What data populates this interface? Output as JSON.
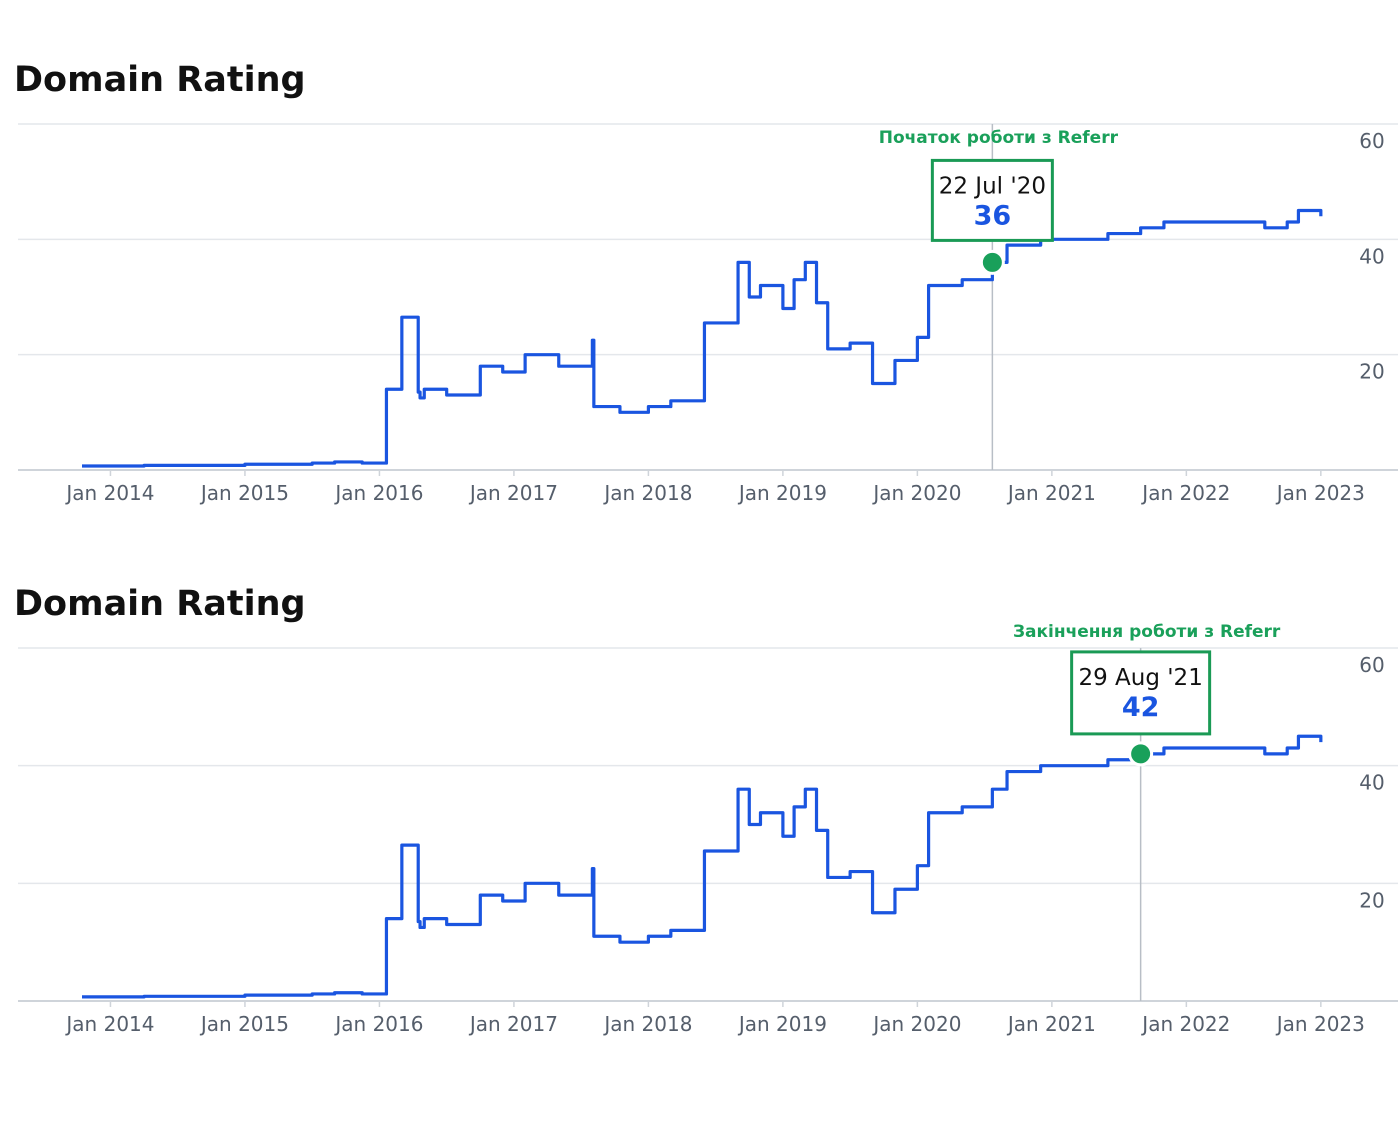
{
  "colors": {
    "series": "#1a55e0",
    "grid": "#e4e7eb",
    "marker": "#19a05a",
    "callout_border": "#1a9a55",
    "annotation": "#1aa05a"
  },
  "chart_data": [
    {
      "type": "line",
      "title": "Domain Rating",
      "xlabel": "",
      "ylabel": "",
      "x_ticks": [
        "Jan 2014",
        "Jan 2015",
        "Jan 2016",
        "Jan 2017",
        "Jan 2018",
        "Jan 2019",
        "Jan 2020",
        "Jan 2021",
        "Jan 2022",
        "Jan 2023"
      ],
      "y_ticks": [
        20,
        40,
        60
      ],
      "ylim": [
        0,
        60
      ],
      "xlim": [
        "2013-10-15",
        "2023-01-15"
      ],
      "grid": true,
      "y_axis_side": "right",
      "series": [
        {
          "x": [
            "2013-10-15",
            "2014-04-01",
            "2015-01-01",
            "2015-07-01",
            "2015-09-01",
            "2015-11-15",
            "2016-01-15",
            "2016-01-20",
            "2016-03-01",
            "2016-04-15",
            "2016-04-20",
            "2016-05-01",
            "2016-07-01",
            "2016-10-01",
            "2016-12-01",
            "2017-02-01",
            "2017-05-01",
            "2017-08-01",
            "2017-08-05",
            "2017-10-15",
            "2018-01-01",
            "2018-03-01",
            "2018-06-01",
            "2018-09-01",
            "2018-10-01",
            "2018-11-01",
            "2019-01-01",
            "2019-02-01",
            "2019-03-01",
            "2019-04-01",
            "2019-05-01",
            "2019-07-01",
            "2019-09-01",
            "2019-11-01",
            "2020-01-01",
            "2020-02-01",
            "2020-03-01",
            "2020-05-01",
            "2020-07-22",
            "2020-09-01",
            "2020-12-01",
            "2021-03-01",
            "2021-06-01",
            "2021-08-29",
            "2021-11-01",
            "2022-02-01",
            "2022-05-01",
            "2022-08-01",
            "2022-10-01",
            "2022-11-01",
            "2023-01-01"
          ],
          "y": [
            0.7,
            0.8,
            1,
            1.2,
            1.4,
            1.2,
            1.2,
            14,
            26.5,
            13.5,
            12.5,
            14,
            13,
            18,
            17,
            20,
            18,
            22.5,
            11,
            10,
            11,
            12,
            25.5,
            36,
            30,
            32,
            28,
            33,
            36,
            29,
            21,
            22,
            15,
            19,
            23,
            32,
            32,
            33,
            36,
            39,
            40,
            40,
            41,
            42,
            43,
            43,
            43,
            42,
            43,
            45,
            44
          ]
        }
      ],
      "callout": {
        "date_label": "22 Jul '20",
        "value_label": "36",
        "x": "2020-07-22",
        "y": 36
      },
      "annotation": "Початок роботи з Referr"
    },
    {
      "type": "line",
      "title": "Domain Rating",
      "xlabel": "",
      "ylabel": "",
      "x_ticks": [
        "Jan 2014",
        "Jan 2015",
        "Jan 2016",
        "Jan 2017",
        "Jan 2018",
        "Jan 2019",
        "Jan 2020",
        "Jan 2021",
        "Jan 2022",
        "Jan 2023"
      ],
      "y_ticks": [
        20,
        40,
        60
      ],
      "ylim": [
        0,
        60
      ],
      "xlim": [
        "2013-10-15",
        "2023-01-15"
      ],
      "grid": true,
      "y_axis_side": "right",
      "series": [
        {
          "x": [
            "2013-10-15",
            "2014-04-01",
            "2015-01-01",
            "2015-07-01",
            "2015-09-01",
            "2015-11-15",
            "2016-01-15",
            "2016-01-20",
            "2016-03-01",
            "2016-04-15",
            "2016-04-20",
            "2016-05-01",
            "2016-07-01",
            "2016-10-01",
            "2016-12-01",
            "2017-02-01",
            "2017-05-01",
            "2017-08-01",
            "2017-08-05",
            "2017-10-15",
            "2018-01-01",
            "2018-03-01",
            "2018-06-01",
            "2018-09-01",
            "2018-10-01",
            "2018-11-01",
            "2019-01-01",
            "2019-02-01",
            "2019-03-01",
            "2019-04-01",
            "2019-05-01",
            "2019-07-01",
            "2019-09-01",
            "2019-11-01",
            "2020-01-01",
            "2020-02-01",
            "2020-03-01",
            "2020-05-01",
            "2020-07-22",
            "2020-09-01",
            "2020-12-01",
            "2021-03-01",
            "2021-06-01",
            "2021-08-29",
            "2021-11-01",
            "2022-02-01",
            "2022-05-01",
            "2022-08-01",
            "2022-10-01",
            "2022-11-01",
            "2023-01-01"
          ],
          "y": [
            0.7,
            0.8,
            1,
            1.2,
            1.4,
            1.2,
            1.2,
            14,
            26.5,
            13.5,
            12.5,
            14,
            13,
            18,
            17,
            20,
            18,
            22.5,
            11,
            10,
            11,
            12,
            25.5,
            36,
            30,
            32,
            28,
            33,
            36,
            29,
            21,
            22,
            15,
            19,
            23,
            32,
            32,
            33,
            36,
            39,
            40,
            40,
            41,
            42,
            43,
            43,
            43,
            42,
            43,
            45,
            44
          ]
        }
      ],
      "callout": {
        "date_label": "29 Aug '21",
        "value_label": "42",
        "x": "2021-08-29",
        "y": 42
      },
      "annotation": "Закінчення роботи з Referr"
    }
  ]
}
